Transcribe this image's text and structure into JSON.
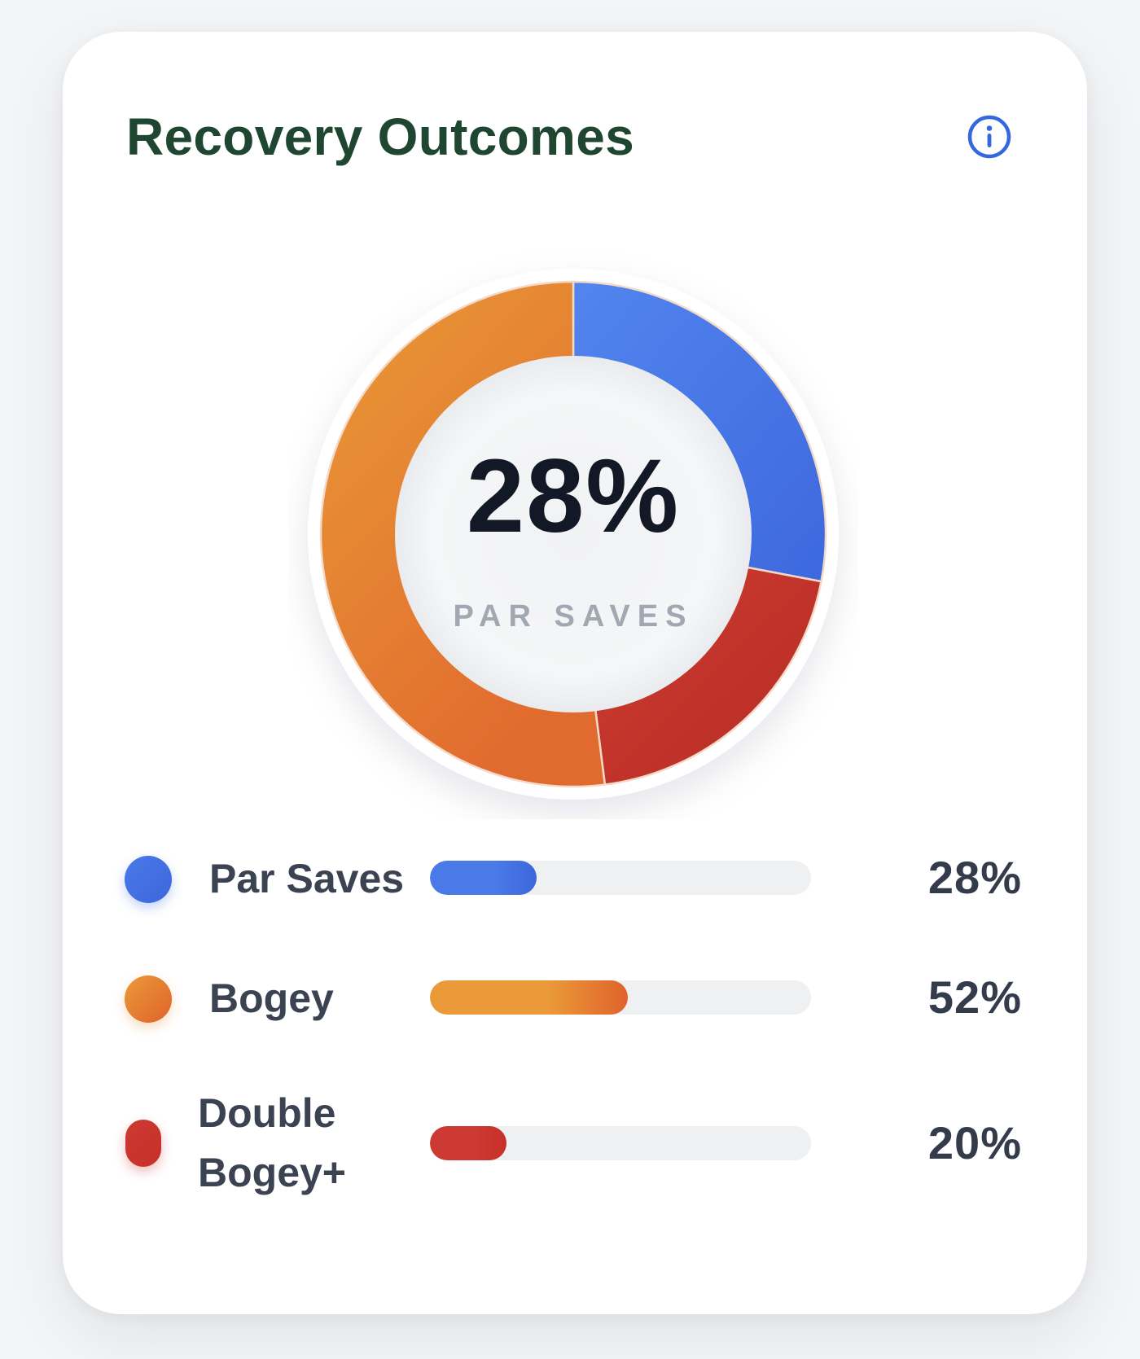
{
  "card": {
    "title": "Recovery Outcomes",
    "info_icon": "info-circle-icon"
  },
  "chart_data": {
    "type": "pie",
    "style": "donut",
    "center": {
      "value": "28%",
      "label": "PAR SAVES"
    },
    "slices": [
      {
        "name": "Par Saves",
        "value": 28,
        "color": "#4a7ae8"
      },
      {
        "name": "Double Bogey+",
        "value": 20,
        "color": "#c8372d"
      },
      {
        "name": "Bogey",
        "value": 52,
        "color": "#e98a32"
      }
    ]
  },
  "legend": {
    "items": [
      {
        "label": "Par Saves",
        "value_text": "28%",
        "fraction": 0.28,
        "color": "#4a7ae8",
        "color_end": "#3d66dc"
      },
      {
        "label": "Bogey",
        "value_text": "52%",
        "fraction": 0.52,
        "color": "#ea9a38",
        "color_end": "#e0632c"
      },
      {
        "label": "Double Bogey+",
        "value_text": "20%",
        "fraction": 0.2,
        "color": "#cc3a33",
        "color_end": "#c63028"
      }
    ]
  }
}
